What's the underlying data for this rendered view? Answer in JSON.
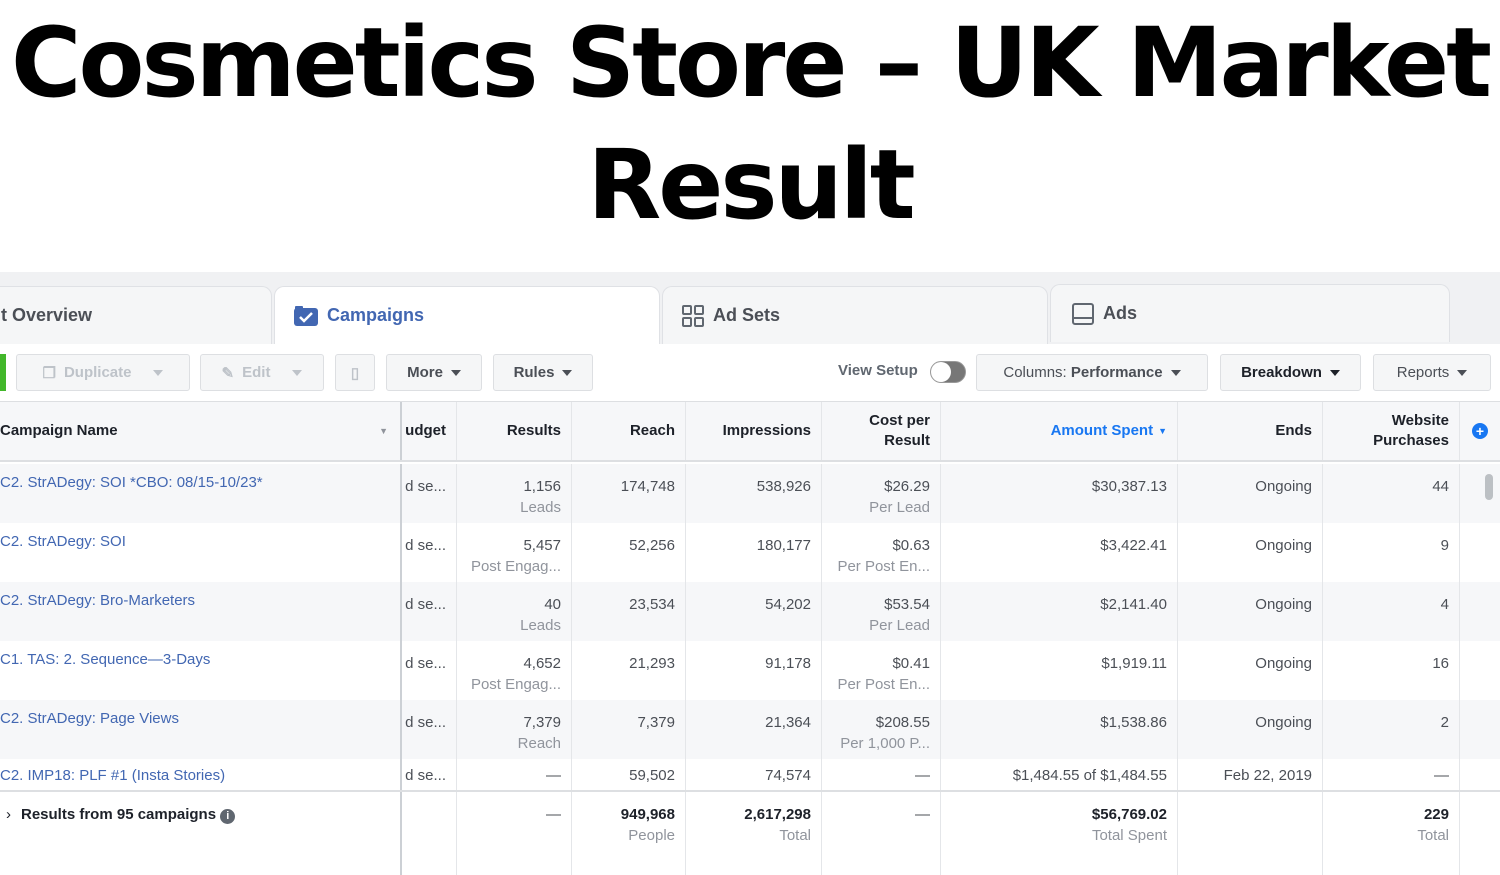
{
  "title": "Cosmetics Store – UK Market Result",
  "tabs": [
    {
      "label": "t Overview"
    },
    {
      "label": "Campaigns",
      "icon": "campaign-check-icon"
    },
    {
      "label": "Ad Sets",
      "icon": "grid-icon"
    },
    {
      "label": "Ads",
      "icon": "ad-icon"
    }
  ],
  "toolbar": {
    "duplicate": "Duplicate",
    "edit": "Edit",
    "more": "More",
    "rules": "Rules",
    "view_setup": "View Setup",
    "columns_prefix": "Columns: ",
    "columns_value": "Performance",
    "breakdown": "Breakdown",
    "reports": "Reports"
  },
  "colors": {
    "accent": "#4267b2",
    "link_blue": "#1877f2",
    "create_green": "#42b72a"
  },
  "headers": {
    "name": "Campaign Name",
    "budget": "udget",
    "results": "Results",
    "reach": "Reach",
    "impressions": "Impressions",
    "cost": "Cost per Result",
    "amount": "Amount Spent",
    "ends": "Ends",
    "purchases": "Website Purchases"
  },
  "rows": [
    {
      "name": "C2. StrADegy: SOI *CBO: 08/15-10/23*",
      "budget": "d se...",
      "results": "1,156",
      "results_sub": "Leads",
      "reach": "174,748",
      "impressions": "538,926",
      "cost": "$26.29",
      "cost_sub": "Per Lead",
      "amount": "$30,387.13",
      "ends": "Ongoing",
      "purchases": "44"
    },
    {
      "name": "C2. StrADegy: SOI",
      "budget": "d se...",
      "results": "5,457",
      "results_sub": "Post Engag...",
      "reach": "52,256",
      "impressions": "180,177",
      "cost": "$0.63",
      "cost_sub": "Per Post En...",
      "amount": "$3,422.41",
      "ends": "Ongoing",
      "purchases": "9"
    },
    {
      "name": "C2. StrADegy: Bro-Marketers",
      "budget": "d se...",
      "results": "40",
      "results_sub": "Leads",
      "reach": "23,534",
      "impressions": "54,202",
      "cost": "$53.54",
      "cost_sub": "Per Lead",
      "amount": "$2,141.40",
      "ends": "Ongoing",
      "purchases": "4"
    },
    {
      "name": "C1. TAS: 2. Sequence—3-Days",
      "budget": "d se...",
      "results": "4,652",
      "results_sub": "Post Engag...",
      "reach": "21,293",
      "impressions": "91,178",
      "cost": "$0.41",
      "cost_sub": "Per Post En...",
      "amount": "$1,919.11",
      "ends": "Ongoing",
      "purchases": "16"
    },
    {
      "name": "C2. StrADegy: Page Views",
      "budget": "d se...",
      "results": "7,379",
      "results_sub": "Reach",
      "reach": "7,379",
      "impressions": "21,364",
      "cost": "$208.55",
      "cost_sub": "Per 1,000 P...",
      "amount": "$1,538.86",
      "ends": "Ongoing",
      "purchases": "2"
    },
    {
      "name": "C2. IMP18: PLF #1 (Insta Stories)",
      "budget": "d se...",
      "results": "—",
      "results_sub": "",
      "reach": "59,502",
      "impressions": "74,574",
      "cost": "—",
      "cost_sub": "",
      "amount": "$1,484.55 of $1,484.55",
      "ends": "Feb 22, 2019",
      "purchases": "—"
    }
  ],
  "footer": {
    "label": "Results from 95 campaigns",
    "results": "—",
    "reach": "949,968",
    "reach_sub": "People",
    "impressions": "2,617,298",
    "impressions_sub": "Total",
    "cost": "—",
    "amount": "$56,769.02",
    "amount_sub": "Total Spent",
    "purchases": "229",
    "purchases_sub": "Total"
  }
}
